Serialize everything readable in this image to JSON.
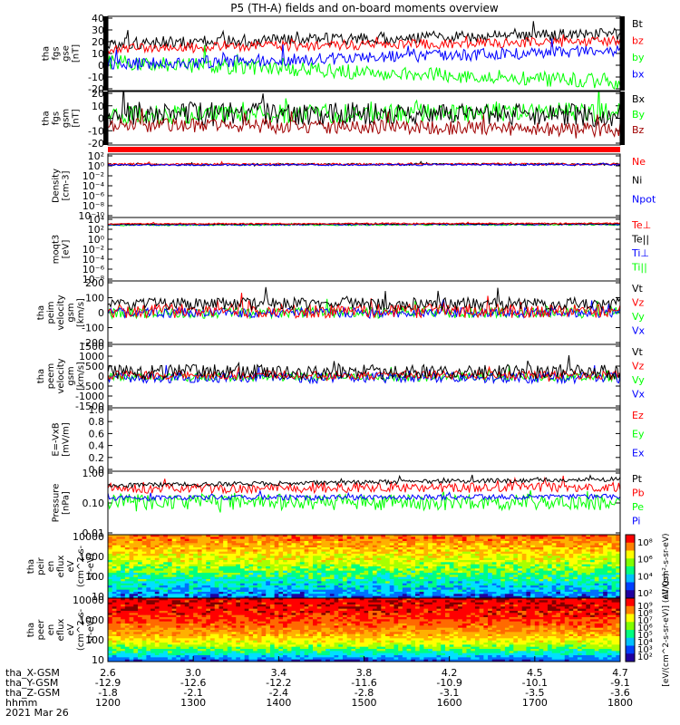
{
  "title": "P5 (TH-A) fields and on-board moments overview",
  "date_label": "2021 Mar 26",
  "colors": {
    "black": "#000000",
    "red": "#ff0000",
    "darkred": "#a00000",
    "green": "#00ff00",
    "blue": "#0000ff"
  },
  "chart_data": [
    {
      "type": "line",
      "ylabel": [
        "tha",
        "fgs",
        "gse",
        "[nT]"
      ],
      "ylim": [
        -20,
        40
      ],
      "yticks": [
        "40",
        "30",
        "20",
        "10",
        "0",
        "-10",
        "-20"
      ],
      "legend": [
        {
          "label": "Bt",
          "color": "#000000"
        },
        {
          "label": "bz",
          "color": "#ff0000"
        },
        {
          "label": "by",
          "color": "#00ff00"
        },
        {
          "label": "bx",
          "color": "#0000ff"
        }
      ],
      "series": [
        {
          "label": "Bt",
          "color": "#000000",
          "start": 18,
          "end": 26,
          "noise": 5
        },
        {
          "label": "bz",
          "color": "#ff0000",
          "start": 14,
          "end": 20,
          "noise": 4
        },
        {
          "label": "by",
          "color": "#00ff00",
          "start": 3,
          "end": -13,
          "noise": 6
        },
        {
          "label": "bx",
          "color": "#0000ff",
          "start": 1,
          "end": 12,
          "noise": 5
        }
      ]
    },
    {
      "type": "line",
      "ylabel": [
        "tha",
        "fgs",
        "gsm",
        "[nT]"
      ],
      "ylim": [
        -25,
        20
      ],
      "yticks": [
        "20",
        "10",
        "0",
        "-10",
        "-20"
      ],
      "legend": [
        {
          "label": "Bx",
          "color": "#000000"
        },
        {
          "label": "By",
          "color": "#00ff00"
        },
        {
          "label": "Bz",
          "color": "#a00000"
        }
      ],
      "series": [
        {
          "label": "By",
          "color": "#00ff00",
          "start": 0,
          "end": 3,
          "noise": 8
        },
        {
          "label": "Bx",
          "color": "#000000",
          "start": 2,
          "end": 0,
          "noise": 10
        },
        {
          "label": "Bz",
          "color": "#a00000",
          "start": -8,
          "end": -12,
          "noise": 6
        }
      ]
    },
    {
      "type": "line",
      "ylabel": [
        "Density",
        "[cm-3]"
      ],
      "ylim": [
        -12,
        3
      ],
      "log": true,
      "yticks": [
        "10²",
        "10⁰",
        "10⁻²",
        "10⁻⁴",
        "10⁻⁶",
        "10⁻⁸",
        "10⁻¹⁰"
      ],
      "legend": [
        {
          "label": "Ne",
          "color": "#ff0000"
        },
        {
          "label": "Ni",
          "color": "#000000"
        },
        {
          "label": "Npot",
          "color": "#0000ff"
        }
      ],
      "series": [
        {
          "label": "Ni",
          "color": "#000000",
          "start": 0.5,
          "end": 0.6,
          "noise": 0.25
        },
        {
          "label": "Ne",
          "color": "#ff0000",
          "start": 0.6,
          "end": 0.6,
          "noise": 0.25
        },
        {
          "label": "Npot",
          "color": "#0000ff",
          "start": 0.4,
          "end": 0.5,
          "noise": 0.2
        }
      ]
    },
    {
      "type": "line",
      "ylabel": [
        "moqt3",
        "[eV]"
      ],
      "ylim": [
        -9,
        5
      ],
      "log": true,
      "yticks": [
        "10⁴",
        "10²",
        "10⁰",
        "10⁻²",
        "10⁻⁴",
        "10⁻⁶",
        "10⁻⁸"
      ],
      "legend": [
        {
          "label": "Te⊥",
          "color": "#ff0000"
        },
        {
          "label": "Te||",
          "color": "#000000"
        },
        {
          "label": "Ti⊥",
          "color": "#0000ff"
        },
        {
          "label": "Ti||",
          "color": "#00ff00"
        }
      ],
      "series": [
        {
          "label": "Ti||",
          "color": "#00ff00",
          "start": 3.3,
          "end": 3.4,
          "noise": 0.15
        },
        {
          "label": "Ti⊥",
          "color": "#0000ff",
          "start": 3.4,
          "end": 3.5,
          "noise": 0.15
        },
        {
          "label": "Te||",
          "color": "#000000",
          "start": 3.5,
          "end": 3.6,
          "noise": 0.15
        },
        {
          "label": "Te⊥",
          "color": "#ff0000",
          "start": 3.6,
          "end": 3.7,
          "noise": 0.15
        }
      ]
    },
    {
      "type": "line",
      "ylabel": [
        "tha",
        "peim",
        "velocity",
        "gsm",
        "[km/s]"
      ],
      "ylim": [
        -200,
        200
      ],
      "yticks": [
        "200",
        "100",
        "0",
        "-100",
        "-200"
      ],
      "legend": [
        {
          "label": "Vt",
          "color": "#000000"
        },
        {
          "label": "Vz",
          "color": "#ff0000"
        },
        {
          "label": "Vy",
          "color": "#00ff00"
        },
        {
          "label": "Vx",
          "color": "#0000ff"
        }
      ],
      "series": [
        {
          "label": "Vy",
          "color": "#00ff00",
          "start": 0,
          "end": 0,
          "noise": 35
        },
        {
          "label": "Vx",
          "color": "#0000ff",
          "start": 0,
          "end": 0,
          "noise": 30
        },
        {
          "label": "Vz",
          "color": "#ff0000",
          "start": 10,
          "end": 10,
          "noise": 45
        },
        {
          "label": "Vt",
          "color": "#000000",
          "start": 55,
          "end": 55,
          "noise": 40
        }
      ]
    },
    {
      "type": "line",
      "ylabel": [
        "tha",
        "peem",
        "velocity",
        "gsm",
        "[km/s]"
      ],
      "ylim": [
        -1500,
        1500
      ],
      "yticks": [
        "1500",
        "1000",
        "500",
        "0",
        "-500",
        "-1000",
        "-1500"
      ],
      "legend": [
        {
          "label": "Vt",
          "color": "#000000"
        },
        {
          "label": "Vz",
          "color": "#ff0000"
        },
        {
          "label": "Vy",
          "color": "#00ff00"
        },
        {
          "label": "Vx",
          "color": "#0000ff"
        }
      ],
      "series": [
        {
          "label": "Vy",
          "color": "#00ff00",
          "start": -50,
          "end": -50,
          "noise": 200
        },
        {
          "label": "Vx",
          "color": "#0000ff",
          "start": -80,
          "end": -80,
          "noise": 250
        },
        {
          "label": "Vz",
          "color": "#ff0000",
          "start": 50,
          "end": 50,
          "noise": 200
        },
        {
          "label": "Vt",
          "color": "#000000",
          "start": 200,
          "end": 200,
          "noise": 350
        }
      ]
    },
    {
      "type": "line",
      "ylabel": [
        "E=-VxB",
        "[mV/m]"
      ],
      "ylim": [
        -0.05,
        1.05
      ],
      "yticks": [
        "1.0",
        "0.8",
        "0.6",
        "0.4",
        "0.2",
        "0.0"
      ],
      "legend": [
        {
          "label": "Ez",
          "color": "#ff0000"
        },
        {
          "label": "Ey",
          "color": "#00ff00"
        },
        {
          "label": "Ex",
          "color": "#0000ff"
        }
      ],
      "series": []
    },
    {
      "type": "line",
      "ylabel": [
        "Pressure",
        "[nPa]"
      ],
      "ylim": [
        -2,
        0
      ],
      "log": true,
      "yticks": [
        "1.00",
        "0.10",
        "0.01"
      ],
      "legend": [
        {
          "label": "Pt",
          "color": "#000000"
        },
        {
          "label": "Pb",
          "color": "#ff0000"
        },
        {
          "label": "Pe",
          "color": "#00ff00"
        },
        {
          "label": "Pi",
          "color": "#0000ff"
        }
      ],
      "series": [
        {
          "label": "Pe",
          "color": "#00ff00",
          "start": -0.95,
          "end": -1.0,
          "noise": 0.25
        },
        {
          "label": "Pi",
          "color": "#0000ff",
          "start": -0.85,
          "end": -0.8,
          "noise": 0.08
        },
        {
          "label": "Pb",
          "color": "#ff0000",
          "start": -0.55,
          "end": -0.5,
          "noise": 0.15
        },
        {
          "label": "Pt",
          "color": "#000000",
          "start": -0.45,
          "end": -0.25,
          "noise": 0.07
        }
      ]
    },
    {
      "type": "heatmap",
      "ylabel": [
        "tha",
        "peir",
        "en",
        "eflux",
        "eV",
        "(cm^2-s-",
        "sr-eV)"
      ],
      "yticks": [
        "10000",
        "1000",
        "100",
        "10"
      ],
      "colorbar": {
        "ticks": [
          "10⁸",
          "10⁶",
          "10⁴",
          "10²"
        ],
        "label": "eV/(cm²-s-sr-eV)"
      }
    },
    {
      "type": "heatmap",
      "ylabel": [
        "tha",
        "peer",
        "en",
        "eflux",
        "eV",
        "(cm^2-s-",
        "sr-eV)"
      ],
      "yticks": [
        "10000",
        "1000",
        "100",
        "10"
      ],
      "colorbar": {
        "ticks": [
          "10⁹",
          "10⁸",
          "10⁷",
          "10⁶",
          "10⁵",
          "10⁴",
          "10³",
          "10²"
        ],
        "label": "[eV/(cm^2-s-sr-eV)] (All Qs)"
      }
    }
  ],
  "x_axis": {
    "rows": [
      {
        "label": "tha_X-GSM",
        "values": [
          "2.6",
          "3.0",
          "3.4",
          "3.8",
          "4.2",
          "4.5",
          "4.7"
        ]
      },
      {
        "label": "tha_Y-GSM",
        "values": [
          "-12.9",
          "-12.6",
          "-12.2",
          "-11.6",
          "-10.9",
          "-10.1",
          "-9.1"
        ]
      },
      {
        "label": "tha_Z-GSM",
        "values": [
          "-1.8",
          "-2.1",
          "-2.4",
          "-2.8",
          "-3.1",
          "-3.5",
          "-3.6"
        ]
      },
      {
        "label": "hhmm",
        "values": [
          "1200",
          "1300",
          "1400",
          "1500",
          "1600",
          "1700",
          "1800"
        ]
      }
    ]
  }
}
